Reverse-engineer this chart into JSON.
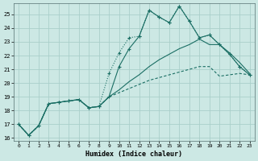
{
  "xlabel": "Humidex (Indice chaleur)",
  "bg_color": "#cce8e4",
  "grid_color": "#aacfca",
  "line_color": "#1a6e64",
  "xlim": [
    -0.5,
    23.5
  ],
  "ylim": [
    15.8,
    25.8
  ],
  "xticks": [
    0,
    1,
    2,
    3,
    4,
    5,
    6,
    7,
    8,
    9,
    10,
    11,
    12,
    13,
    14,
    15,
    16,
    17,
    18,
    19,
    20,
    21,
    22,
    23
  ],
  "yticks": [
    16,
    17,
    18,
    19,
    20,
    21,
    22,
    23,
    24,
    25
  ],
  "line_dotted_x": [
    0,
    1,
    2,
    3,
    4,
    5,
    6,
    7,
    8,
    9,
    10,
    11,
    12,
    13,
    14,
    15,
    16,
    17,
    18,
    19,
    20,
    21,
    22,
    23
  ],
  "line_dotted_y": [
    17.0,
    16.2,
    16.9,
    18.5,
    18.6,
    18.7,
    18.8,
    18.2,
    18.3,
    20.7,
    22.2,
    23.3,
    23.4,
    25.3,
    24.8,
    24.4,
    25.6,
    24.5,
    23.3,
    23.5,
    22.8,
    22.1,
    21.2,
    20.6
  ],
  "line_solid_x": [
    0,
    1,
    2,
    3,
    4,
    5,
    6,
    7,
    8,
    9,
    10,
    11,
    12,
    13,
    14,
    15,
    16,
    17,
    18,
    19,
    20,
    21,
    22,
    23
  ],
  "line_solid_y": [
    17.0,
    16.2,
    16.9,
    18.5,
    18.6,
    18.7,
    18.8,
    18.2,
    18.3,
    19.0,
    21.2,
    22.5,
    23.4,
    25.3,
    24.8,
    24.4,
    25.6,
    24.5,
    23.3,
    23.5,
    22.8,
    22.1,
    21.2,
    20.6
  ],
  "line_trend1_x": [
    0,
    1,
    2,
    3,
    4,
    5,
    6,
    7,
    8,
    9,
    10,
    11,
    12,
    13,
    14,
    15,
    16,
    17,
    18,
    19,
    20,
    21,
    22,
    23
  ],
  "line_trend1_y": [
    17.0,
    16.2,
    16.9,
    18.5,
    18.6,
    18.7,
    18.8,
    18.2,
    18.3,
    19.0,
    19.5,
    20.1,
    20.6,
    21.2,
    21.7,
    22.1,
    22.5,
    22.8,
    23.2,
    22.8,
    22.8,
    22.2,
    21.5,
    20.7
  ],
  "line_trend2_x": [
    0,
    1,
    2,
    3,
    4,
    5,
    6,
    7,
    8,
    9,
    10,
    11,
    12,
    13,
    14,
    15,
    16,
    17,
    18,
    19,
    20,
    21,
    22,
    23
  ],
  "line_trend2_y": [
    17.0,
    16.2,
    16.9,
    18.5,
    18.6,
    18.7,
    18.8,
    18.2,
    18.3,
    19.0,
    19.3,
    19.6,
    19.9,
    20.2,
    20.4,
    20.6,
    20.8,
    21.0,
    21.2,
    21.2,
    20.5,
    20.6,
    20.7,
    20.6
  ]
}
